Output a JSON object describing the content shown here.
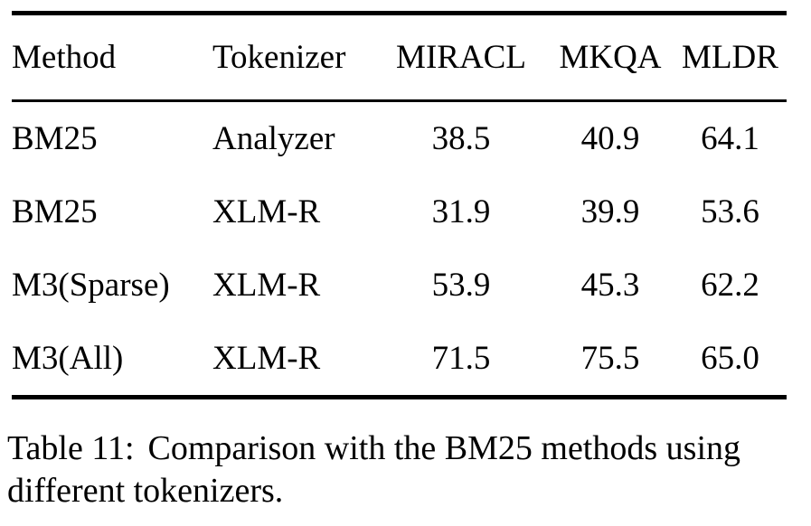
{
  "table": {
    "headers": [
      "Method",
      "Tokenizer",
      "MIRACL",
      "MKQA",
      "MLDR"
    ],
    "rows": [
      [
        "BM25",
        "Analyzer",
        "38.5",
        "40.9",
        "64.1"
      ],
      [
        "BM25",
        "XLM-R",
        "31.9",
        "39.9",
        "53.6"
      ],
      [
        "M3(Sparse)",
        "XLM-R",
        "53.9",
        "45.3",
        "62.2"
      ],
      [
        "M3(All)",
        "XLM-R",
        "71.5",
        "75.5",
        "65.0"
      ]
    ]
  },
  "caption": {
    "label": "Table 11:",
    "text": "Comparison with the BM25 methods using different tokenizers."
  },
  "colors": {
    "text": "#000000",
    "background": "#ffffff",
    "rule": "#000000"
  }
}
